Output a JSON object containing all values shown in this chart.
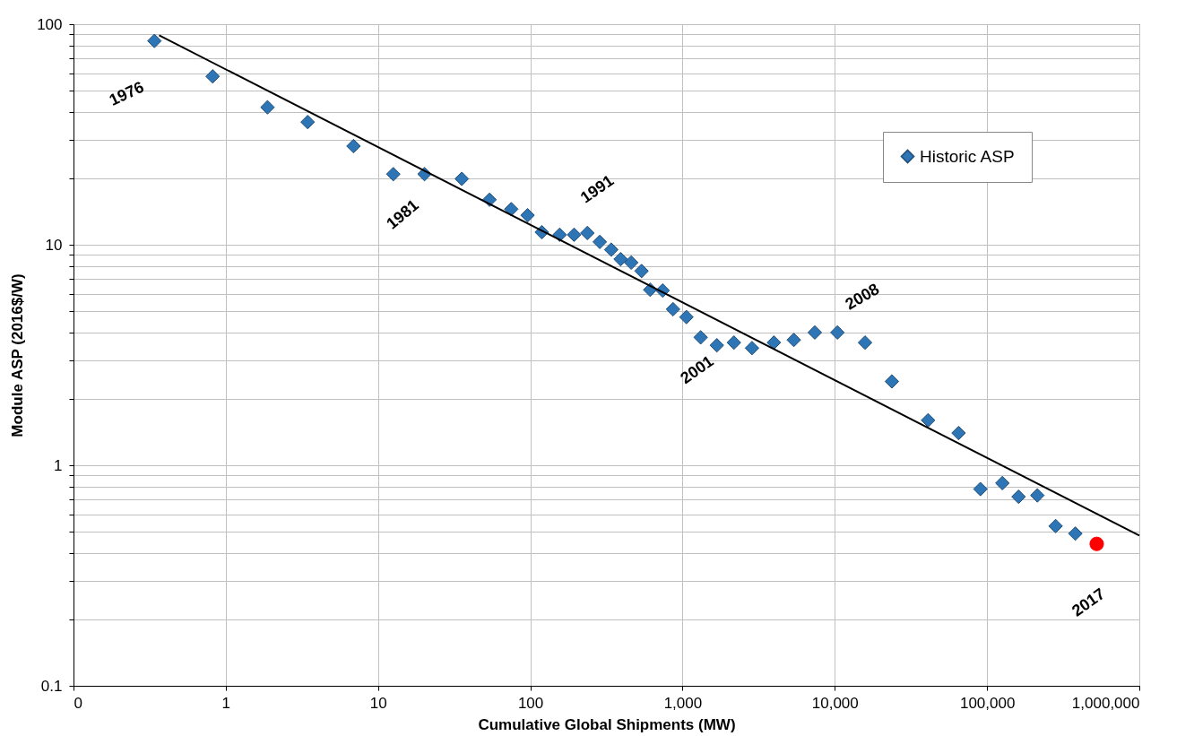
{
  "chart_data": {
    "type": "scatter",
    "xlabel": "Cumulative Global Shipments (MW)",
    "ylabel": "Module ASP (2016$/W)",
    "log": "xy",
    "grid": true,
    "legend": "top right",
    "marker": "diamond",
    "xlim": [
      0.1,
      1000000
    ],
    "xticks": [
      {
        "value": 0.1,
        "label": "0"
      },
      1,
      10,
      100,
      {
        "value": 1000,
        "label": "1,000"
      },
      {
        "value": 10000,
        "label": "10,000"
      },
      {
        "value": 100000,
        "label": "100,000"
      },
      {
        "value": 1000000,
        "label": "1,000,000"
      }
    ],
    "ylim": [
      0.1,
      100
    ],
    "yticks": [
      0.1,
      {
        "value": 0.2,
        "label": null
      },
      {
        "value": 0.3,
        "label": null
      },
      {
        "value": 0.4,
        "label": null
      },
      {
        "value": 0.5,
        "label": null
      },
      {
        "value": 0.6,
        "label": null
      },
      {
        "value": 0.7,
        "label": null
      },
      {
        "value": 0.8,
        "label": null
      },
      {
        "value": 0.9,
        "label": null
      },
      1,
      {
        "value": 2,
        "label": null
      },
      {
        "value": 3,
        "label": null
      },
      {
        "value": 4,
        "label": null
      },
      {
        "value": 5,
        "label": null
      },
      {
        "value": 6,
        "label": null
      },
      {
        "value": 7,
        "label": null
      },
      {
        "value": 8,
        "label": null
      },
      {
        "value": 9,
        "label": null
      },
      10,
      {
        "value": 20,
        "label": null
      },
      {
        "value": 30,
        "label": null
      },
      {
        "value": 40,
        "label": null
      },
      {
        "value": 50,
        "label": null
      },
      {
        "value": 60,
        "label": null
      },
      {
        "value": 70,
        "label": null
      },
      {
        "value": 80,
        "label": null
      },
      {
        "value": 90,
        "label": null
      },
      100
    ],
    "series": [
      {
        "name": "Historic ASP",
        "color": "#2e75b6",
        "x": [
          0.34,
          0.82,
          1.88,
          3.45,
          6.9,
          12.6,
          20.2,
          35.5,
          54,
          75,
          96,
          119,
          156,
          194,
          237,
          286,
          340,
          392,
          460,
          538,
          613,
          740,
          866,
          1060,
          1315,
          1680,
          2175,
          2860,
          3980,
          5380,
          7390,
          10400,
          15800,
          23700,
          41000,
          65000,
          90400,
          126000,
          161000,
          214000,
          282000,
          380000
        ],
        "values": [
          84,
          58,
          42,
          36,
          28,
          20.9,
          20.9,
          19.9,
          16,
          14.5,
          13.6,
          11.4,
          11.1,
          11.1,
          11.3,
          10.3,
          9.5,
          8.6,
          8.3,
          7.6,
          6.25,
          6.2,
          5.1,
          4.7,
          3.8,
          3.5,
          3.6,
          3.4,
          3.6,
          3.7,
          4.0,
          4.0,
          3.6,
          2.4,
          1.6,
          1.4,
          0.78,
          0.83,
          0.72,
          0.73,
          0.53,
          0.49
        ]
      },
      {
        "type": "scatter",
        "color": "#ff0000",
        "marker": "circle",
        "x": [
          525000
        ],
        "values": [
          0.44
        ]
      },
      {
        "type": "line",
        "color": "#000000",
        "line_style": "solid",
        "marker": "none",
        "x": [
          0.365,
          1000000
        ],
        "values": [
          89,
          0.48
        ]
      }
    ],
    "annotations": [
      {
        "text": "1976",
        "x": 0.34,
        "y": 84
      },
      {
        "text": "1981",
        "x": 12.6,
        "y": 20.9
      },
      {
        "text": "1991",
        "x": 237,
        "y": 11.3
      },
      {
        "text": "2001",
        "x": 1315,
        "y": 3.8
      },
      {
        "text": "2008",
        "x": 15800,
        "y": 3.6
      },
      {
        "text": "2017",
        "x": 525000,
        "y": 0.44
      }
    ]
  }
}
